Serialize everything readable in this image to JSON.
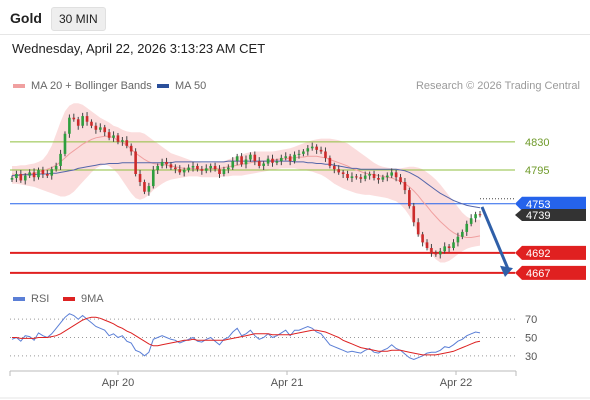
{
  "header": {
    "symbol": "Gold",
    "timeframe": "30 MIN",
    "datetime": "Wednesday, April 22, 2026 3:13:23 AM CET",
    "credit": "Research © 2026 Trading Central"
  },
  "legend": {
    "ma20_label": "MA 20 + Bollinger Bands",
    "ma50_label": "MA 50",
    "rsi_label": "RSI",
    "ma9_label": "9MA"
  },
  "colors": {
    "bollinger_fill": "#f9d2d2",
    "ma20": "#f0a0a0",
    "ma50": "#5566aa",
    "candle_up": "#2e9e3e",
    "candle_down": "#cc2b2b",
    "pivot": "#2563eb",
    "support": "#e02020",
    "resistance": "#8fbf3f",
    "rsi": "#5b7fd6",
    "rsi_ma": "#dd2222",
    "last_price": "#333333",
    "projection_arrow": "#2f5fa8"
  },
  "chart_data": [
    {
      "type": "candlestick",
      "title": "Gold 30 MIN",
      "x_labels": [
        "Apr 20",
        "Apr 21",
        "Apr 22"
      ],
      "ylim": [
        4652,
        4882
      ],
      "last_price": 4739,
      "levels": [
        {
          "label": "4830",
          "value": 4830,
          "kind": "resistance"
        },
        {
          "label": "4795",
          "value": 4795,
          "kind": "resistance"
        },
        {
          "label": "4753",
          "value": 4753,
          "kind": "pivot"
        },
        {
          "label": "4692",
          "value": 4692,
          "kind": "support"
        },
        {
          "label": "4667",
          "value": 4667,
          "kind": "support"
        }
      ],
      "last_price_label": "4739",
      "series": [
        {
          "name": "MA 20 + Bollinger Bands"
        },
        {
          "name": "MA 50"
        }
      ],
      "close": [
        4785,
        4790,
        4782,
        4788,
        4792,
        4786,
        4795,
        4790,
        4788,
        4796,
        4800,
        4815,
        4840,
        4860,
        4858,
        4850,
        4862,
        4855,
        4850,
        4845,
        4848,
        4842,
        4835,
        4838,
        4830,
        4832,
        4825,
        4818,
        4790,
        4780,
        4768,
        4775,
        4795,
        4800,
        4805,
        4802,
        4798,
        4796,
        4792,
        4795,
        4798,
        4800,
        4796,
        4794,
        4797,
        4800,
        4796,
        4790,
        4796,
        4798,
        4806,
        4812,
        4802,
        4808,
        4814,
        4806,
        4800,
        4803,
        4809,
        4804,
        4806,
        4810,
        4812,
        4806,
        4814,
        4815,
        4818,
        4822,
        4824,
        4820,
        4818,
        4810,
        4800,
        4796,
        4792,
        4790,
        4785,
        4787,
        4786,
        4784,
        4788,
        4790,
        4785,
        4783,
        4786,
        4788,
        4792,
        4786,
        4780,
        4770,
        4750,
        4730,
        4715,
        4705,
        4698,
        4692,
        4690,
        4694,
        4700,
        4698,
        4705,
        4712,
        4718,
        4728,
        4735,
        4740,
        4739
      ],
      "ma20": [
        4790,
        4789,
        4789,
        4790,
        4790,
        4791,
        4792,
        4794,
        4796,
        4798,
        4801,
        4805,
        4810,
        4815,
        4819,
        4823,
        4827,
        4830,
        4833,
        4835,
        4836,
        4837,
        4837,
        4835,
        4832,
        4829,
        4826,
        4821,
        4816,
        4812,
        4808,
        4805,
        4803,
        4802,
        4802,
        4801,
        4800,
        4799,
        4798,
        4797,
        4797,
        4797,
        4796,
        4796,
        4796,
        4797,
        4797,
        4797,
        4798,
        4799,
        4800,
        4801,
        4802,
        4803,
        4804,
        4805,
        4805,
        4806,
        4806,
        4807,
        4808,
        4809,
        4809,
        4810,
        4810,
        4811,
        4811,
        4812,
        4812,
        4812,
        4811,
        4810,
        4808,
        4806,
        4804,
        4802,
        4800,
        4797,
        4795,
        4793,
        4791,
        4790,
        4789,
        4788,
        4787,
        4786,
        4785,
        4783,
        4781,
        4778,
        4774,
        4769,
        4763,
        4756,
        4750,
        4743,
        4737,
        4731,
        4726,
        4721,
        4717,
        4714,
        4712,
        4711,
        4711,
        4712,
        4713
      ],
      "bb_upper": [
        4800,
        4800,
        4801,
        4801,
        4802,
        4803,
        4805,
        4808,
        4815,
        4825,
        4840,
        4855,
        4868,
        4875,
        4878,
        4878,
        4876,
        4872,
        4868,
        4864,
        4860,
        4857,
        4854,
        4850,
        4848,
        4845,
        4843,
        4842,
        4842,
        4842,
        4840,
        4836,
        4832,
        4828,
        4824,
        4820,
        4816,
        4814,
        4812,
        4810,
        4808,
        4806,
        4805,
        4804,
        4804,
        4804,
        4804,
        4805,
        4806,
        4808,
        4810,
        4812,
        4814,
        4816,
        4817,
        4818,
        4818,
        4818,
        4818,
        4818,
        4819,
        4820,
        4821,
        4822,
        4824,
        4826,
        4828,
        4830,
        4832,
        4833,
        4834,
        4834,
        4834,
        4833,
        4832,
        4830,
        4828,
        4824,
        4820,
        4816,
        4812,
        4808,
        4804,
        4801,
        4799,
        4798,
        4797,
        4797,
        4797,
        4798,
        4799,
        4799,
        4798,
        4796,
        4792,
        4788,
        4783,
        4777,
        4770,
        4763,
        4756,
        4749,
        4742,
        4737,
        4734,
        4733,
        4733
      ],
      "bb_lower": [
        4778,
        4778,
        4777,
        4776,
        4775,
        4774,
        4772,
        4770,
        4768,
        4766,
        4764,
        4762,
        4762,
        4764,
        4768,
        4774,
        4780,
        4786,
        4792,
        4797,
        4800,
        4802,
        4800,
        4796,
        4790,
        4782,
        4774,
        4766,
        4760,
        4758,
        4760,
        4764,
        4770,
        4774,
        4778,
        4781,
        4783,
        4784,
        4785,
        4786,
        4787,
        4787,
        4787,
        4786,
        4786,
        4786,
        4786,
        4786,
        4787,
        4787,
        4788,
        4788,
        4788,
        4789,
        4790,
        4791,
        4792,
        4793,
        4794,
        4795,
        4796,
        4797,
        4797,
        4797,
        4797,
        4796,
        4795,
        4794,
        4793,
        4791,
        4789,
        4786,
        4782,
        4778,
        4775,
        4772,
        4770,
        4768,
        4766,
        4765,
        4764,
        4764,
        4763,
        4762,
        4761,
        4760,
        4758,
        4756,
        4752,
        4746,
        4738,
        4728,
        4716,
        4706,
        4698,
        4690,
        4684,
        4680,
        4680,
        4682,
        4686,
        4690,
        4694,
        4697,
        4699,
        4700,
        4701
      ],
      "ma50": [
        4788,
        4788,
        4789,
        4789,
        4789,
        4789,
        4790,
        4790,
        4790,
        4791,
        4791,
        4792,
        4793,
        4794,
        4795,
        4797,
        4798,
        4799,
        4800,
        4801,
        4802,
        4802,
        4803,
        4803,
        4803,
        4804,
        4804,
        4804,
        4804,
        4804,
        4804,
        4804,
        4804,
        4804,
        4804,
        4804,
        4804,
        4805,
        4805,
        4805,
        4805,
        4805,
        4805,
        4805,
        4805,
        4805,
        4805,
        4805,
        4805,
        4806,
        4806,
        4806,
        4806,
        4806,
        4806,
        4806,
        4806,
        4806,
        4806,
        4806,
        4806,
        4806,
        4806,
        4806,
        4805,
        4805,
        4805,
        4804,
        4804,
        4803,
        4803,
        4802,
        4802,
        4801,
        4800,
        4799,
        4798,
        4797,
        4797,
        4796,
        4796,
        4796,
        4796,
        4796,
        4796,
        4796,
        4796,
        4796,
        4795,
        4794,
        4792,
        4789,
        4786,
        4782,
        4778,
        4774,
        4770,
        4766,
        4763,
        4760,
        4757,
        4755,
        4753,
        4751,
        4750,
        4749,
        4748
      ]
    },
    {
      "type": "line",
      "title": "RSI",
      "ylim": [
        20,
        80
      ],
      "yticks": [
        30,
        50,
        70
      ],
      "series": [
        {
          "name": "RSI",
          "values": [
            48,
            50,
            46,
            52,
            51,
            47,
            55,
            52,
            50,
            54,
            60,
            66,
            72,
            76,
            74,
            70,
            74,
            70,
            66,
            62,
            60,
            58,
            52,
            54,
            50,
            52,
            46,
            44,
            36,
            34,
            30,
            34,
            48,
            50,
            52,
            50,
            48,
            47,
            44,
            46,
            48,
            50,
            46,
            45,
            48,
            50,
            46,
            42,
            48,
            50,
            56,
            60,
            52,
            54,
            58,
            52,
            48,
            50,
            54,
            50,
            52,
            55,
            58,
            52,
            58,
            58,
            60,
            62,
            60,
            56,
            54,
            48,
            42,
            40,
            38,
            36,
            34,
            35,
            34,
            33,
            36,
            38,
            34,
            33,
            36,
            38,
            42,
            38,
            36,
            32,
            28,
            26,
            28,
            30,
            33,
            34,
            34,
            36,
            40,
            39,
            42,
            46,
            48,
            52,
            54,
            56,
            55
          ]
        },
        {
          "name": "9MA",
          "values": [
            50,
            50,
            49,
            49,
            49,
            49,
            50,
            50,
            50,
            51,
            52,
            54,
            57,
            60,
            63,
            66,
            69,
            71,
            72,
            72,
            71,
            69,
            67,
            65,
            62,
            60,
            57,
            55,
            52,
            49,
            46,
            43,
            41,
            41,
            42,
            43,
            44,
            45,
            46,
            47,
            47,
            48,
            47,
            47,
            47,
            47,
            47,
            47,
            47,
            48,
            49,
            50,
            51,
            52,
            53,
            54,
            54,
            54,
            54,
            53,
            53,
            53,
            53,
            53,
            54,
            55,
            56,
            57,
            58,
            58,
            57,
            56,
            54,
            52,
            50,
            47,
            45,
            43,
            41,
            39,
            38,
            37,
            36,
            35,
            35,
            35,
            36,
            36,
            36,
            35,
            34,
            33,
            32,
            31,
            31,
            31,
            31,
            32,
            33,
            34,
            35,
            37,
            39,
            41,
            43,
            45,
            46
          ]
        }
      ]
    }
  ]
}
